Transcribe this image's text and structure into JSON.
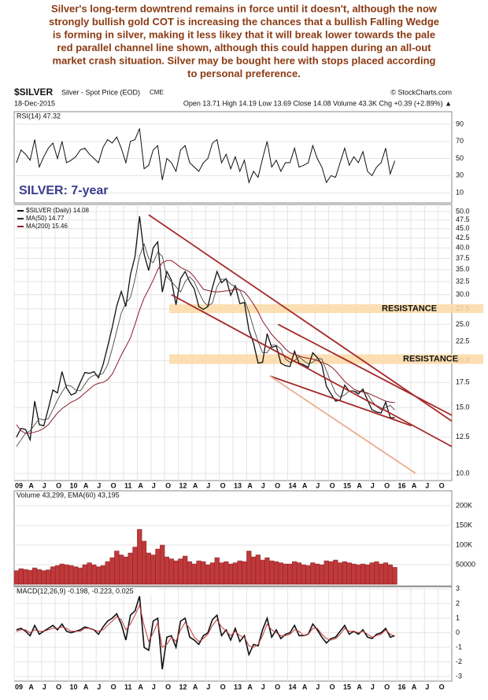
{
  "commentary": {
    "lines": [
      "Silver's long-term downtrend remains in force until it doesn't, although the now",
      "strongly bullish gold COT is increasing the chances that a bullish Falling Wedge",
      "is forming in silver, making it less likey that it will break lower towards the pale",
      "red parallel channel line shown, although this could happen during an all-out",
      "market crash situation. Silver may be bought here with stops placed according",
      "to personal preference."
    ]
  },
  "quote": {
    "symbol": "$SILVER",
    "name": "Silver - Spot Price (EOD)",
    "exchange": "CME",
    "source": "© StockCharts.com",
    "date": "18-Dec-2015",
    "stats": "Open 13.71  High 14.19  Low 13.69  Close 14.08  Volume 43.3K  Chg +0.39 (+2.89%) ▲"
  },
  "chart_data": [
    {
      "type": "line",
      "title": "RSI(14) 47.32",
      "annotation": "SILVER: 7-year",
      "ylim": [
        0,
        100
      ],
      "yticks": [
        10,
        30,
        50,
        70,
        90
      ],
      "grid": true,
      "series": [
        {
          "color": "#111111",
          "values": [
            45,
            60,
            55,
            48,
            72,
            40,
            52,
            62,
            68,
            50,
            70,
            45,
            48,
            52,
            60,
            62,
            55,
            50,
            45,
            63,
            72,
            68,
            75,
            62,
            45,
            70,
            72,
            85,
            38,
            42,
            60,
            65,
            25,
            50,
            45,
            35,
            60,
            65,
            45,
            40,
            35,
            45,
            50,
            68,
            72,
            45,
            55,
            38,
            52,
            35,
            48,
            22,
            35,
            28,
            50,
            70,
            40,
            48,
            35,
            45,
            45,
            62,
            40,
            42,
            45,
            65,
            50,
            40,
            22,
            30,
            28,
            45,
            62,
            42,
            52,
            45,
            58,
            35,
            30,
            40,
            45,
            62,
            32,
            47.32,
            null,
            null,
            null,
            null,
            null,
            null,
            null,
            null,
            null,
            null,
            null,
            null
          ]
        }
      ]
    },
    {
      "type": "line",
      "log_scale": true,
      "ylim": [
        10,
        50
      ],
      "grid": true,
      "yticks": [
        {
          "value": 10,
          "label": "10.0"
        },
        12.5,
        {
          "value": 15,
          "label": "15.0"
        },
        17.5,
        {
          "value": 20,
          "label": "20.0"
        },
        22.5,
        {
          "value": 25,
          "label": "25.0"
        },
        27.5,
        {
          "value": 30,
          "label": "30.0"
        },
        32.5,
        {
          "value": 35,
          "label": "35.0"
        },
        37.5,
        {
          "value": 40,
          "label": "40.0"
        },
        42.5,
        {
          "value": 45,
          "label": "45.0"
        },
        47.5,
        {
          "value": 50,
          "label": "50.0"
        }
      ],
      "categories": [
        "09",
        null,
        null,
        "A",
        null,
        null,
        "J",
        null,
        null,
        "O",
        null,
        null,
        "10",
        null,
        null,
        "A",
        null,
        null,
        "J",
        null,
        null,
        "O",
        null,
        null,
        "11",
        null,
        null,
        "A",
        null,
        null,
        "J",
        null,
        null,
        "O",
        null,
        null,
        "12",
        null,
        null,
        "A",
        null,
        null,
        "J",
        null,
        null,
        "O",
        null,
        null,
        "13",
        null,
        null,
        "A",
        null,
        null,
        "J",
        null,
        null,
        "O",
        null,
        null,
        "14",
        null,
        null,
        "A",
        null,
        null,
        "J",
        null,
        null,
        "O",
        null,
        null,
        "15",
        null,
        null,
        "A",
        null,
        null,
        "J",
        null,
        null,
        "O",
        null,
        null,
        "16",
        null,
        null,
        "A",
        null,
        null,
        "J",
        null,
        null,
        "O",
        null,
        null
      ],
      "series": [
        {
          "name": "$SILVER (Daily) 14.08",
          "color": "#111111",
          "width": 1.3,
          "values": [
            12.5,
            13.2,
            13.1,
            12.3,
            15.6,
            13.5,
            13.4,
            14.9,
            16.7,
            16.4,
            18.7,
            16.9,
            16.2,
            16.4,
            17.5,
            18.6,
            18.5,
            18.7,
            18.0,
            19.5,
            21.8,
            24.5,
            28.0,
            30.6,
            27.9,
            33.9,
            37.9,
            48.6,
            38.5,
            34.8,
            40.0,
            41.5,
            30.5,
            34.6,
            32.8,
            28.2,
            33.1,
            34.6,
            32.5,
            31.1,
            27.9,
            27.4,
            27.9,
            31.4,
            34.6,
            32.3,
            33.1,
            29.9,
            31.7,
            28.4,
            28.6,
            24.1,
            22.3,
            19.7,
            19.8,
            23.6,
            21.7,
            21.9,
            19.7,
            19.4,
            19.3,
            21.2,
            19.7,
            19.5,
            19.2,
            21.0,
            20.4,
            19.5,
            17.1,
            16.3,
            15.6,
            15.7,
            17.2,
            16.6,
            16.6,
            16.3,
            16.8,
            15.7,
            14.8,
            14.6,
            14.5,
            15.5,
            14.1,
            14.08,
            null,
            null,
            null,
            null,
            null,
            null,
            null,
            null,
            null,
            null,
            null,
            null
          ]
        },
        {
          "name": "MA(50) 14.77",
          "color": "#333333",
          "width": 0.8,
          "values": [
            11.8,
            12.3,
            12.8,
            13.0,
            13.5,
            14.0,
            13.9,
            14.0,
            14.8,
            15.7,
            16.5,
            17.2,
            17.1,
            16.7,
            16.6,
            17.3,
            18.0,
            18.3,
            18.3,
            18.5,
            19.5,
            21.5,
            24.0,
            26.8,
            28.5,
            29.5,
            33.0,
            38.0,
            41.0,
            37.5,
            36.5,
            39.0,
            38.0,
            33.5,
            32.5,
            31.5,
            30.5,
            32.5,
            33.5,
            32.5,
            30.5,
            28.8,
            28.0,
            28.5,
            31.5,
            33.0,
            33.0,
            32.0,
            31.5,
            30.8,
            29.0,
            27.0,
            24.5,
            22.5,
            21.0,
            21.0,
            22.0,
            22.0,
            21.5,
            20.2,
            19.8,
            20.0,
            20.5,
            20.0,
            19.6,
            19.8,
            20.3,
            20.2,
            18.8,
            17.5,
            16.4,
            16.0,
            16.2,
            16.6,
            16.6,
            16.5,
            16.6,
            16.3,
            15.6,
            15.1,
            14.8,
            15.0,
            15.2,
            14.77,
            null,
            null,
            null,
            null,
            null,
            null,
            null,
            null,
            null,
            null,
            null,
            null
          ]
        },
        {
          "name": "MA(200) 15.46",
          "color": "#8b1a2a",
          "width": 1,
          "values": [
            13.5,
            13.0,
            12.8,
            12.8,
            12.9,
            13.0,
            13.2,
            13.5,
            14.0,
            14.5,
            14.9,
            15.2,
            15.5,
            15.7,
            16.0,
            16.4,
            16.8,
            17.2,
            17.4,
            17.5,
            17.8,
            18.4,
            19.5,
            20.7,
            21.8,
            23.0,
            25.0,
            27.3,
            29.4,
            31.0,
            32.8,
            35.0,
            36.5,
            37.0,
            37.0,
            36.3,
            35.5,
            35.0,
            34.5,
            33.5,
            32.2,
            31.0,
            30.8,
            30.6,
            30.5,
            30.6,
            30.7,
            30.8,
            31.0,
            30.9,
            30.5,
            29.5,
            28.3,
            27.0,
            25.5,
            24.5,
            23.5,
            22.8,
            22.2,
            21.5,
            21.0,
            20.8,
            20.6,
            20.4,
            20.3,
            20.2,
            20.0,
            19.8,
            19.6,
            19.3,
            18.8,
            18.2,
            17.6,
            17.2,
            16.8,
            16.6,
            16.5,
            16.4,
            16.2,
            16.0,
            15.8,
            15.6,
            15.5,
            15.46,
            null,
            null,
            null,
            null,
            null,
            null,
            null,
            null,
            null,
            null,
            null,
            null
          ]
        }
      ],
      "bands": [
        {
          "label": "RESISTANCE",
          "from": 26.8,
          "to": 28.3,
          "color": "#fbd9a4"
        },
        {
          "label": "RESISTANCE",
          "from": 19.6,
          "to": 20.8,
          "color": "#fbd9a4"
        }
      ],
      "trendlines": [
        {
          "x": [
            29,
            95.5
          ],
          "y": [
            49,
            13.8
          ],
          "color": "#a52a2a"
        },
        {
          "x": [
            34,
            95.5
          ],
          "y": [
            30,
            11.8
          ],
          "color": "#a52a2a"
        },
        {
          "x": [
            57.4,
            95.5
          ],
          "y": [
            25,
            14.3
          ],
          "color": "#a52a2a"
        },
        {
          "x": [
            55.6,
            86.7
          ],
          "y": [
            18.2,
            13.4
          ],
          "color": "#a52a2a"
        },
        {
          "x": [
            55.6,
            87.6
          ],
          "y": [
            18.2,
            10
          ],
          "color": "#e8b090"
        }
      ]
    },
    {
      "type": "bar",
      "title": "Volume 43,299, EMA(60) 43,195",
      "ylim": [
        0,
        236000
      ],
      "grid": true,
      "yticks": [
        50000,
        {
          "value": 100000,
          "label": "100K"
        },
        {
          "value": 150000,
          "label": "150K"
        },
        {
          "value": 200000,
          "label": "200K"
        }
      ],
      "series": [
        {
          "color": "#c0393b",
          "values": [
            35000,
            40000,
            38000,
            36000,
            42000,
            38000,
            35000,
            37000,
            45000,
            48000,
            52000,
            50000,
            48000,
            45000,
            42000,
            50000,
            55000,
            50000,
            45000,
            48000,
            58000,
            68000,
            85000,
            75000,
            70000,
            80000,
            95000,
            140000,
            110000,
            80000,
            75000,
            90000,
            100000,
            70000,
            65000,
            60000,
            65000,
            72000,
            58000,
            52000,
            60000,
            58000,
            50000,
            55000,
            68000,
            55000,
            58000,
            52000,
            55000,
            60000,
            58000,
            85000,
            70000,
            75000,
            62000,
            68000,
            60000,
            58000,
            55000,
            52000,
            52000,
            58000,
            55000,
            50000,
            48000,
            55000,
            52000,
            50000,
            60000,
            58000,
            62000,
            55000,
            58000,
            55000,
            52000,
            50000,
            52000,
            50000,
            55000,
            58000,
            52000,
            55000,
            50000,
            43299,
            null,
            null,
            null,
            null,
            null,
            null,
            null,
            null,
            null,
            null,
            null,
            null
          ]
        }
      ]
    },
    {
      "type": "line",
      "title": "MACD(12,26,9) -0.198, -0.223, 0.025",
      "ylim": [
        -3.1,
        3.1
      ],
      "grid": true,
      "yticks": [
        -3,
        -2,
        -1,
        0,
        1,
        2,
        3
      ],
      "categories": [
        "09",
        null,
        null,
        "A",
        null,
        null,
        "J",
        null,
        null,
        "O",
        null,
        null,
        "10",
        null,
        null,
        "A",
        null,
        null,
        "J",
        null,
        null,
        "O",
        null,
        null,
        "11",
        null,
        null,
        "A",
        null,
        null,
        "J",
        null,
        null,
        "O",
        null,
        null,
        "12",
        null,
        null,
        "A",
        null,
        null,
        "J",
        null,
        null,
        "O",
        null,
        null,
        "13",
        null,
        null,
        "A",
        null,
        null,
        "J",
        null,
        null,
        "O",
        null,
        null,
        "14",
        null,
        null,
        "A",
        null,
        null,
        "J",
        null,
        null,
        "O",
        null,
        null,
        "15",
        null,
        null,
        "A",
        null,
        null,
        "J",
        null,
        null,
        "O",
        null,
        null,
        "16",
        null,
        null,
        "A",
        null,
        null,
        "J",
        null,
        null,
        "O",
        null,
        null
      ],
      "series": [
        {
          "color": "#111111",
          "width": 1.6,
          "values": [
            0.2,
            0.3,
            0.1,
            -0.2,
            0.5,
            -0.1,
            0.1,
            0.3,
            0.5,
            0.2,
            0.6,
            0.1,
            0,
            0.1,
            0.2,
            0.4,
            0.3,
            0.2,
            -0.1,
            0.4,
            0.8,
            1.0,
            1.3,
            0.6,
            -0.5,
            1.2,
            1.5,
            2.5,
            -1.0,
            -1.2,
            0.8,
            1.0,
            -2.5,
            -0.3,
            -0.2,
            -1.0,
            0.8,
            1.0,
            -0.3,
            -0.5,
            -0.8,
            -0.2,
            0,
            0.9,
            1.2,
            -0.2,
            0.2,
            -0.5,
            0.3,
            -0.6,
            -0.2,
            -1.5,
            -0.8,
            -0.9,
            0.2,
            1.0,
            -0.3,
            0.2,
            -0.4,
            -0.1,
            0,
            0.5,
            -0.2,
            -0.2,
            -0.1,
            0.6,
            0.2,
            -0.3,
            -0.7,
            -0.4,
            -0.3,
            0.1,
            0.5,
            -0.1,
            0.1,
            -0.1,
            0.2,
            -0.3,
            -0.4,
            -0.1,
            0,
            0.3,
            -0.3,
            -0.198,
            null,
            null,
            null,
            null,
            null,
            null,
            null,
            null,
            null,
            null,
            null,
            null
          ]
        },
        {
          "color": "#c0393b",
          "width": 1,
          "values": [
            0.1,
            0.2,
            0.2,
            0,
            0.2,
            0.1,
            0.1,
            0.2,
            0.3,
            0.3,
            0.4,
            0.3,
            0.1,
            0.1,
            0.1,
            0.3,
            0.3,
            0.2,
            0.1,
            0.2,
            0.5,
            0.8,
            1.1,
            0.9,
            0.2,
            0.6,
            1.2,
            1.9,
            0.5,
            -0.6,
            0,
            0.7,
            -1.0,
            -0.8,
            -0.3,
            -0.6,
            0.2,
            0.7,
            0.3,
            -0.3,
            -0.6,
            -0.4,
            -0.1,
            0.5,
            0.9,
            0.4,
            0.1,
            -0.2,
            0.1,
            -0.2,
            -0.3,
            -0.9,
            -1.0,
            -0.8,
            -0.2,
            0.6,
            0.2,
            0,
            -0.2,
            -0.2,
            -0.1,
            0.2,
            0.1,
            -0.2,
            -0.1,
            0.3,
            0.3,
            -0.1,
            -0.4,
            -0.5,
            -0.4,
            -0.1,
            0.3,
            0.1,
            0.1,
            0,
            0.1,
            -0.1,
            -0.3,
            -0.2,
            -0.1,
            0.2,
            -0.1,
            -0.223,
            null,
            null,
            null,
            null,
            null,
            null,
            null,
            null,
            null,
            null,
            null,
            null
          ]
        }
      ]
    }
  ]
}
